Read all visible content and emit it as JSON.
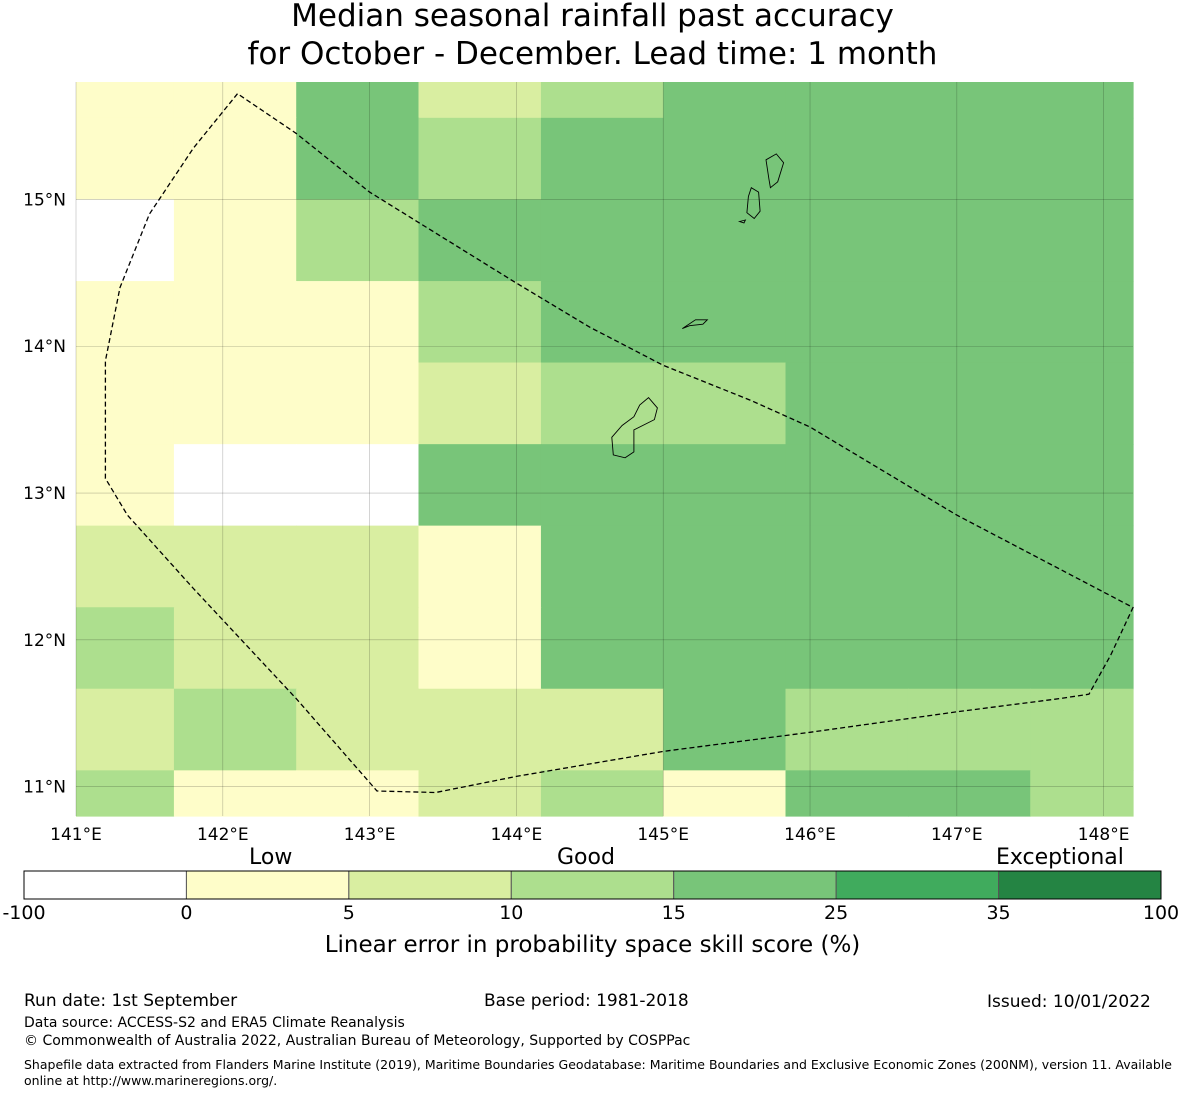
{
  "title": {
    "line1": "Median seasonal rainfall past accuracy",
    "line2": "for October - December. Lead time: 1 month"
  },
  "map": {
    "lon_range": [
      141.0,
      148.2
    ],
    "lat_range": [
      10.8,
      15.8
    ],
    "lon_ticks": [
      141,
      142,
      143,
      144,
      145,
      146,
      147,
      148
    ],
    "lat_ticks": [
      11,
      12,
      13,
      14,
      15
    ],
    "lon_tick_labels": [
      "141°E",
      "142°E",
      "143°E",
      "144°E",
      "145°E",
      "146°E",
      "147°E",
      "148°E"
    ],
    "lat_tick_labels": [
      "11°N",
      "12°N",
      "13°N",
      "14°N",
      "15°N"
    ],
    "grid_lines": true,
    "grid_cells": {
      "lon_edges": [
        141.0,
        141.667,
        142.5,
        143.333,
        144.167,
        145.0,
        145.833,
        146.667,
        147.5,
        148.2
      ],
      "lat_edges_top_to_bottom": [
        15.8,
        15.556,
        15.0,
        14.444,
        13.889,
        13.333,
        12.778,
        12.222,
        11.667,
        11.111,
        10.8
      ],
      "category_rows_top_to_bottom": [
        [
          1,
          1,
          4,
          2,
          3,
          4,
          4,
          4,
          4
        ],
        [
          1,
          1,
          4,
          3,
          4,
          4,
          4,
          4,
          4
        ],
        [
          0,
          1,
          3,
          4,
          4,
          4,
          4,
          4,
          4
        ],
        [
          1,
          1,
          1,
          3,
          4,
          4,
          4,
          4,
          4
        ],
        [
          1,
          1,
          1,
          2,
          3,
          3,
          4,
          4,
          4
        ],
        [
          1,
          0,
          0,
          4,
          4,
          4,
          4,
          4,
          4
        ],
        [
          2,
          2,
          2,
          1,
          4,
          4,
          4,
          4,
          4
        ],
        [
          3,
          2,
          2,
          1,
          4,
          4,
          4,
          4,
          4
        ],
        [
          2,
          3,
          2,
          2,
          2,
          4,
          3,
          3,
          3
        ],
        [
          3,
          1,
          1,
          2,
          3,
          1,
          4,
          4,
          3
        ]
      ]
    },
    "eez_boundary_points": [
      [
        142.1,
        15.72
      ],
      [
        141.8,
        15.35
      ],
      [
        141.5,
        14.9
      ],
      [
        141.3,
        14.4
      ],
      [
        141.2,
        13.9
      ],
      [
        141.2,
        13.1
      ],
      [
        141.35,
        12.85
      ],
      [
        141.8,
        12.35
      ],
      [
        142.5,
        11.6
      ],
      [
        143.05,
        10.97
      ],
      [
        143.45,
        10.96
      ],
      [
        144.0,
        11.07
      ],
      [
        145.0,
        11.24
      ],
      [
        146.0,
        11.37
      ],
      [
        147.0,
        11.51
      ],
      [
        147.7,
        11.6
      ],
      [
        147.9,
        11.63
      ],
      [
        148.05,
        11.9
      ],
      [
        148.2,
        12.22
      ],
      [
        147.0,
        12.85
      ],
      [
        146.0,
        13.45
      ],
      [
        145.6,
        13.63
      ],
      [
        145.0,
        13.87
      ],
      [
        144.5,
        14.13
      ],
      [
        144.0,
        14.43
      ],
      [
        143.0,
        15.05
      ],
      [
        142.5,
        15.45
      ],
      [
        142.1,
        15.72
      ]
    ],
    "islands": [
      {
        "name": "saipan-tinian",
        "points": [
          [
            145.7,
            15.27
          ],
          [
            145.77,
            15.31
          ],
          [
            145.82,
            15.25
          ],
          [
            145.78,
            15.12
          ],
          [
            145.73,
            15.08
          ],
          [
            145.72,
            15.14
          ],
          [
            145.7,
            15.27
          ]
        ]
      },
      {
        "name": "tinian",
        "points": [
          [
            145.58,
            15.02
          ],
          [
            145.6,
            15.08
          ],
          [
            145.65,
            15.05
          ],
          [
            145.66,
            14.92
          ],
          [
            145.62,
            14.87
          ],
          [
            145.57,
            14.91
          ],
          [
            145.58,
            15.02
          ]
        ]
      },
      {
        "name": "aguijan",
        "points": [
          [
            145.52,
            14.85
          ],
          [
            145.56,
            14.86
          ],
          [
            145.55,
            14.84
          ],
          [
            145.52,
            14.85
          ]
        ]
      },
      {
        "name": "rota",
        "points": [
          [
            145.13,
            14.12
          ],
          [
            145.22,
            14.18
          ],
          [
            145.3,
            14.18
          ],
          [
            145.27,
            14.15
          ],
          [
            145.18,
            14.14
          ],
          [
            145.13,
            14.12
          ]
        ]
      },
      {
        "name": "guam",
        "points": [
          [
            144.9,
            13.65
          ],
          [
            144.96,
            13.58
          ],
          [
            144.94,
            13.5
          ],
          [
            144.8,
            13.43
          ],
          [
            144.8,
            13.28
          ],
          [
            144.74,
            13.24
          ],
          [
            144.66,
            13.26
          ],
          [
            144.65,
            13.38
          ],
          [
            144.72,
            13.46
          ],
          [
            144.8,
            13.52
          ],
          [
            144.84,
            13.6
          ],
          [
            144.9,
            13.65
          ]
        ]
      }
    ]
  },
  "colorbar": {
    "words": [
      "Low",
      "Good",
      "Exceptional"
    ],
    "boundaries": [
      "-100",
      "0",
      "5",
      "10",
      "15",
      "25",
      "35",
      "100"
    ],
    "colors": [
      "#ffffff",
      "#fefdc9",
      "#d9eea1",
      "#addf8e",
      "#78c579",
      "#40ab5d",
      "#248443"
    ],
    "label": "Linear error in probability space skill score (%)"
  },
  "footer": {
    "run_date": "Run date: 1st September",
    "base_period": "Base period: 1981-2018",
    "issued": "Issued: 10/01/2022",
    "data_source": "Data source: ACCESS-S2 and ERA5 Climate Reanalysis",
    "copyright": "© Commonwealth of Australia 2022, Australian Bureau of Meteorology, Supported by COSPPac",
    "shapefile": "Shapefile data extracted from Flanders Marine Institute (2019), Maritime Boundaries Geodatabase: Maritime Boundaries and Exclusive Economic Zones (200NM), version 11. Available online at http://www.marineregions.org/."
  }
}
